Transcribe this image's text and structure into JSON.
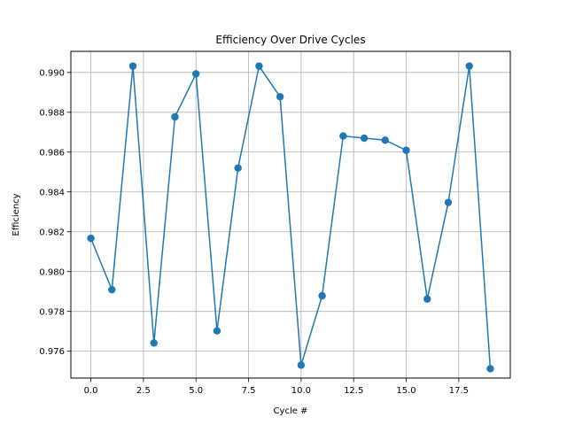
{
  "chart_data": {
    "type": "line",
    "title": "Efficiency Over Drive Cycles",
    "xlabel": "Cycle #",
    "ylabel": "Efficiency",
    "xlim": [
      -0.95,
      19.95
    ],
    "ylim": [
      0.97465,
      0.99106
    ],
    "xticks": [
      0.0,
      2.5,
      5.0,
      7.5,
      10.0,
      12.5,
      15.0,
      17.5
    ],
    "xtick_labels": [
      "0.0",
      "2.5",
      "5.0",
      "7.5",
      "10.0",
      "12.5",
      "15.0",
      "17.5"
    ],
    "yticks": [
      0.976,
      0.978,
      0.98,
      0.982,
      0.984,
      0.986,
      0.988,
      0.99
    ],
    "ytick_labels": [
      "0.976",
      "0.978",
      "0.980",
      "0.982",
      "0.984",
      "0.986",
      "0.988",
      "0.990"
    ],
    "grid": true,
    "series": [
      {
        "color": "#1f77b4",
        "marker": "circle",
        "x": [
          0,
          1,
          2,
          3,
          4,
          5,
          6,
          7,
          8,
          9,
          10,
          11,
          12,
          13,
          14,
          15,
          16,
          17,
          18,
          19
        ],
        "values": [
          0.98167,
          0.97909,
          0.99032,
          0.97641,
          0.98777,
          0.98993,
          0.97702,
          0.9852,
          0.99032,
          0.98878,
          0.9753,
          0.97878,
          0.98681,
          0.9867,
          0.9866,
          0.98609,
          0.97862,
          0.98347,
          0.99032,
          0.97512
        ]
      }
    ]
  }
}
